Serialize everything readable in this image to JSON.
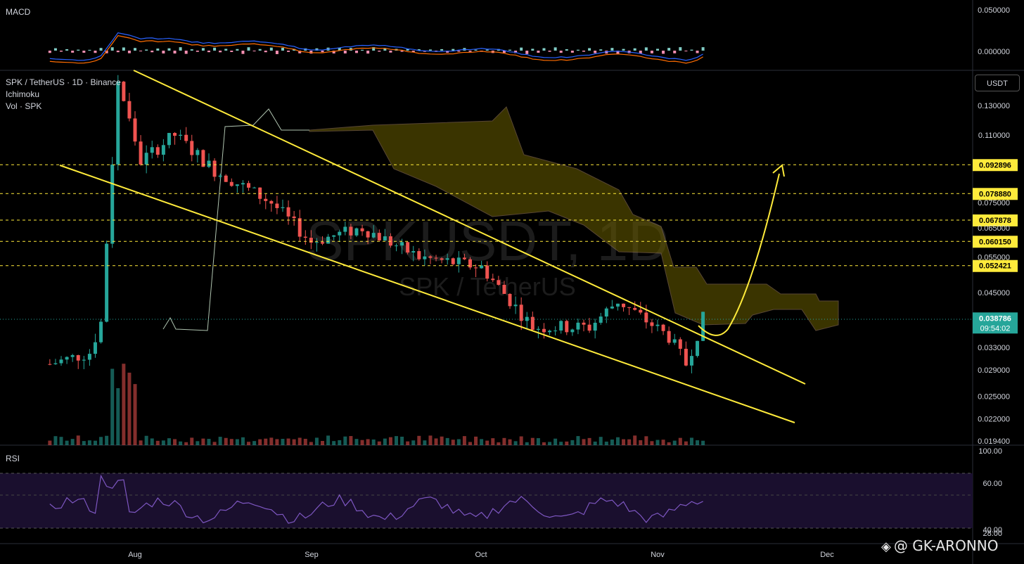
{
  "header": {
    "symbol_line": "SPK / TetherUS · 1D · Binance",
    "indicator_1": "Ichimoku",
    "indicator_2": "Vol · SPK",
    "currency_button": "USDT"
  },
  "panes": {
    "macd": {
      "label": "MACD",
      "ticks": [
        "0.050000",
        "0.000000"
      ]
    },
    "rsi": {
      "label": "RSI",
      "ticks": [
        "100.00",
        "60.00",
        "40.00",
        "28.00"
      ]
    }
  },
  "watermark_main": "SPKUSDT, 1D",
  "watermark_sub": "SPK / TetherUS",
  "author": {
    "handle": "@ GK-ARONNO"
  },
  "colors": {
    "up": "#26a69a",
    "down": "#ef5350",
    "trend": "#ffeb3b",
    "cloud": "#6b5f00",
    "rsi": "#7e57c2",
    "bg": "#000000"
  },
  "chart_data": {
    "type": "candlestick",
    "title": "SPK / TetherUS · 1D · Binance",
    "x_ticks": [
      "Aug",
      "Sep",
      "Oct",
      "Nov",
      "Dec"
    ],
    "y_ticks": [
      "0.130000",
      "0.110000",
      "0.075000",
      "0.065000",
      "0.055000",
      "0.045000",
      "0.033000",
      "0.029000",
      "0.025000",
      "0.022000",
      "0.019400"
    ],
    "y_scale": "log",
    "price_levels": [
      "0.092896",
      "0.078880",
      "0.067878",
      "0.060150",
      "0.052421"
    ],
    "last_price": "0.038786",
    "countdown": "09:54:02",
    "series": [
      {
        "name": "SPK / TetherUS",
        "ohlc_waypoints": [
          {
            "date": "Jul 17",
            "close": 0.03
          },
          {
            "date": "Jul 24",
            "close": 0.032
          },
          {
            "date": "Jul 26",
            "close": 0.038
          },
          {
            "date": "Jul 28",
            "close": 0.095
          },
          {
            "date": "Jul 29",
            "close": 0.15
          },
          {
            "date": "Aug 02",
            "close": 0.095
          },
          {
            "date": "Aug 08",
            "close": 0.11
          },
          {
            "date": "Aug 15",
            "close": 0.09
          },
          {
            "date": "Aug 25",
            "close": 0.075
          },
          {
            "date": "Sep 01",
            "close": 0.06
          },
          {
            "date": "Sep 10",
            "close": 0.065
          },
          {
            "date": "Sep 20",
            "close": 0.055
          },
          {
            "date": "Oct 01",
            "close": 0.052
          },
          {
            "date": "Oct 10",
            "close": 0.037
          },
          {
            "date": "Oct 20",
            "close": 0.037
          },
          {
            "date": "Oct 25",
            "close": 0.043
          },
          {
            "date": "Nov 03",
            "close": 0.035
          },
          {
            "date": "Nov 06",
            "close": 0.03
          },
          {
            "date": "Nov 09",
            "close": 0.0388
          }
        ]
      }
    ]
  }
}
